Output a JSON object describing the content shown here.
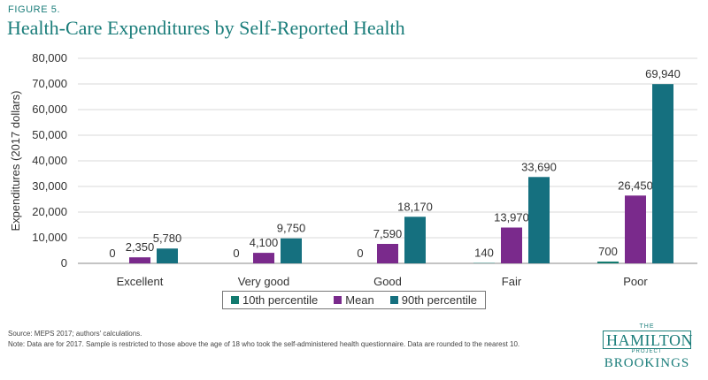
{
  "figure_label": "FIGURE 5.",
  "title": "Health-Care Expenditures by Self-Reported Health",
  "source_note": "Source: MEPS 2017; authors' calculations.",
  "data_note": "Note: Data are for 2017. Sample is restricted to those above the age of 18 who took the self-administered health questionnaire. Data are rounded to the nearest 10.",
  "logo": {
    "the": "THE",
    "hamilton": "HAMILTON",
    "project": "PROJECT",
    "brookings": "BROOKINGS"
  },
  "chart_data": {
    "type": "bar",
    "ylabel": "Expenditures (2017 dollars)",
    "xlabel": "",
    "ylim": [
      0,
      80000
    ],
    "yticks": [
      0,
      10000,
      20000,
      30000,
      40000,
      50000,
      60000,
      70000,
      80000
    ],
    "ytick_labels": [
      "0",
      "10,000",
      "20,000",
      "30,000",
      "40,000",
      "50,000",
      "60,000",
      "70,000",
      "80,000"
    ],
    "grid": true,
    "legend_position": "bottom",
    "categories": [
      "Excellent",
      "Very good",
      "Good",
      "Fair",
      "Poor"
    ],
    "series": [
      {
        "name": "10th percentile",
        "color": "#127a6f",
        "values": [
          0,
          0,
          0,
          140,
          700
        ],
        "labels": [
          "0",
          "0",
          "0",
          "140",
          "700"
        ]
      },
      {
        "name": "Mean",
        "color": "#7a2a8c",
        "values": [
          2350,
          4100,
          7590,
          13970,
          26450
        ],
        "labels": [
          "2,350",
          "4,100",
          "7,590",
          "13,970",
          "26,450"
        ]
      },
      {
        "name": "90th percentile",
        "color": "#15707f",
        "values": [
          5780,
          9750,
          18170,
          33690,
          69940
        ],
        "labels": [
          "5,780",
          "9,750",
          "18,170",
          "33,690",
          "69,940"
        ]
      }
    ]
  }
}
